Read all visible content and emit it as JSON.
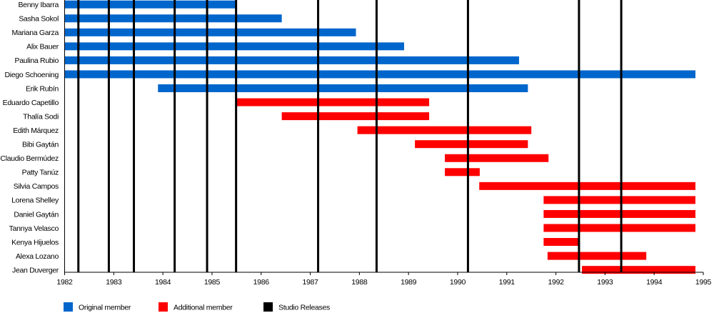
{
  "chart_data": {
    "type": "timeline",
    "title": "",
    "xlabel": "",
    "ylabel": "",
    "xlim": [
      1982,
      1995
    ],
    "x_ticks": [
      1982,
      1983,
      1984,
      1985,
      1986,
      1987,
      1988,
      1989,
      1990,
      1991,
      1992,
      1993,
      1994,
      1995
    ],
    "grid": false,
    "legend_position": "bottom-left",
    "colors": {
      "original": "#0066CC",
      "additional": "#FF0000",
      "release": "#000000"
    },
    "legend": [
      {
        "key": "original",
        "label": "Original member"
      },
      {
        "key": "additional",
        "label": "Additional member"
      },
      {
        "key": "release",
        "label": "Studio Releases"
      }
    ],
    "releases": [
      1982.28,
      1982.9,
      1983.41,
      1984.24,
      1984.9,
      1985.49,
      1987.16,
      1988.35,
      1990.21,
      1992.47,
      1993.33
    ],
    "members": [
      {
        "name": "Benny Ibarra",
        "type": "original",
        "start": 1982.0,
        "end": 1985.5
      },
      {
        "name": "Sasha Sokol",
        "type": "original",
        "start": 1982.0,
        "end": 1986.42
      },
      {
        "name": "Mariana Garza",
        "type": "original",
        "start": 1982.0,
        "end": 1987.93
      },
      {
        "name": "Alix Bauer",
        "type": "original",
        "start": 1982.0,
        "end": 1988.91
      },
      {
        "name": "Paulina Rubio",
        "type": "original",
        "start": 1982.0,
        "end": 1991.25
      },
      {
        "name": "Diego Schoening",
        "type": "original",
        "start": 1982.0,
        "end": 1994.84
      },
      {
        "name": "Erik Rubín",
        "type": "original",
        "start": 1983.9,
        "end": 1991.43
      },
      {
        "name": "Eduardo Capetillo",
        "type": "additional",
        "start": 1985.49,
        "end": 1989.42
      },
      {
        "name": "Thalía Sodi",
        "type": "additional",
        "start": 1986.42,
        "end": 1989.42
      },
      {
        "name": "Edith Márquez",
        "type": "additional",
        "start": 1987.96,
        "end": 1991.5
      },
      {
        "name": "Bibi Gaytán",
        "type": "additional",
        "start": 1989.13,
        "end": 1991.43
      },
      {
        "name": "Claudio Bermúdez",
        "type": "additional",
        "start": 1989.74,
        "end": 1991.85
      },
      {
        "name": "Patty Tanúz",
        "type": "additional",
        "start": 1989.74,
        "end": 1990.45
      },
      {
        "name": "Silvia Campos",
        "type": "additional",
        "start": 1990.44,
        "end": 1994.84
      },
      {
        "name": "Lorena Shelley",
        "type": "additional",
        "start": 1991.75,
        "end": 1994.84
      },
      {
        "name": "Daniel Gaytán",
        "type": "additional",
        "start": 1991.75,
        "end": 1994.84
      },
      {
        "name": "Tannya Velasco",
        "type": "additional",
        "start": 1991.75,
        "end": 1994.84
      },
      {
        "name": "Kenya Hijuelos",
        "type": "additional",
        "start": 1991.75,
        "end": 1992.47
      },
      {
        "name": "Alexa Lozano",
        "type": "additional",
        "start": 1991.83,
        "end": 1993.84
      },
      {
        "name": "Jean Duverger",
        "type": "additional",
        "start": 1992.53,
        "end": 1994.84
      }
    ]
  }
}
